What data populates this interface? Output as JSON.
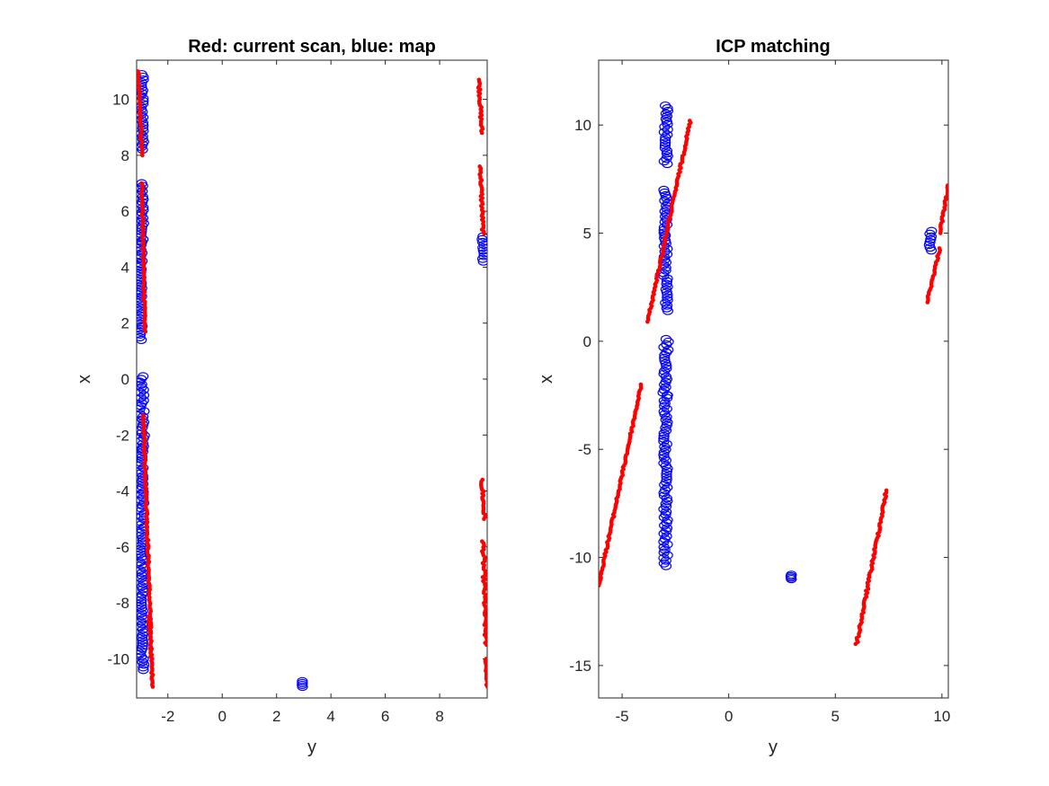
{
  "figure": {
    "background": "#ffffff"
  },
  "chart_data": [
    {
      "type": "scatter",
      "title": "Red: current scan, blue: map",
      "xlabel": "y",
      "ylabel": "x",
      "xlim": [
        -3.15,
        9.75
      ],
      "ylim": [
        -11.4,
        11.4
      ],
      "xticks": [
        -2,
        0,
        2,
        4,
        6,
        8
      ],
      "yticks": [
        -10,
        -8,
        -6,
        -4,
        -2,
        0,
        2,
        4,
        6,
        8,
        10
      ],
      "grid": false,
      "legend": "none",
      "series": [
        {
          "color": "#0000ff",
          "marker": "circle-open",
          "segments": [
            {
              "x": [
                -2.95,
                -2.95
              ],
              "y": [
                8.2,
                10.9
              ],
              "jitter": 0.06
            },
            {
              "x": [
                -2.95,
                -2.95
              ],
              "y": [
                4.9,
                7.0
              ],
              "jitter": 0.06
            },
            {
              "x": [
                -3.0,
                -3.0
              ],
              "y": [
                1.4,
                4.9
              ],
              "jitter": 0.06
            },
            {
              "x": [
                -2.95,
                -2.95
              ],
              "y": [
                -2.5,
                0.1
              ],
              "jitter": 0.09
            },
            {
              "x": [
                -2.95,
                -2.95
              ],
              "y": [
                -10.4,
                -2.5
              ],
              "jitter": 0.07
            },
            {
              "x": [
                2.95,
                2.95
              ],
              "y": [
                -11.0,
                -10.8
              ],
              "jitter": 0.02
            },
            {
              "x": [
                9.6,
                9.6
              ],
              "y": [
                4.2,
                5.1
              ],
              "jitter": 0.04
            }
          ]
        },
        {
          "color": "#ff0000",
          "marker": "point",
          "segments": [
            {
              "x": [
                -3.1,
                -2.95
              ],
              "y": [
                11.0,
                8.0
              ],
              "jitter": 0.03
            },
            {
              "x": [
                -2.95,
                -2.85
              ],
              "y": [
                7.0,
                1.7
              ],
              "jitter": 0.03
            },
            {
              "x": [
                -2.9,
                -2.6
              ],
              "y": [
                -1.3,
                -10.0
              ],
              "jitter": 0.03
            },
            {
              "x": [
                -2.7,
                -2.55
              ],
              "y": [
                -8.5,
                -11.0
              ],
              "jitter": 0.03
            },
            {
              "x": [
                9.45,
                9.55
              ],
              "y": [
                10.7,
                8.8
              ],
              "jitter": 0.04
            },
            {
              "x": [
                9.5,
                9.6
              ],
              "y": [
                7.6,
                5.2
              ],
              "jitter": 0.04
            },
            {
              "x": [
                9.55,
                9.65
              ],
              "y": [
                -3.6,
                -5.0
              ],
              "jitter": 0.05
            },
            {
              "x": [
                9.6,
                9.7
              ],
              "y": [
                -5.8,
                -9.5
              ],
              "jitter": 0.05
            },
            {
              "x": [
                9.7,
                9.75
              ],
              "y": [
                -10.0,
                -11.0
              ],
              "jitter": 0.03
            }
          ]
        }
      ]
    },
    {
      "type": "scatter",
      "title": "ICP matching",
      "xlabel": "y",
      "ylabel": "x",
      "xlim": [
        -6.1,
        10.3
      ],
      "ylim": [
        -16.5,
        13.0
      ],
      "xticks": [
        -5,
        0,
        5,
        10
      ],
      "yticks": [
        -15,
        -10,
        -5,
        0,
        5,
        10
      ],
      "grid": false,
      "legend": "none",
      "series": [
        {
          "color": "#0000ff",
          "marker": "circle-open",
          "segments": [
            {
              "x": [
                -2.95,
                -2.95
              ],
              "y": [
                8.2,
                10.9
              ],
              "jitter": 0.1
            },
            {
              "x": [
                -2.95,
                -2.95
              ],
              "y": [
                4.9,
                7.0
              ],
              "jitter": 0.1
            },
            {
              "x": [
                -2.95,
                -2.95
              ],
              "y": [
                1.4,
                4.9
              ],
              "jitter": 0.1
            },
            {
              "x": [
                -2.95,
                -2.95
              ],
              "y": [
                -2.5,
                0.1
              ],
              "jitter": 0.14
            },
            {
              "x": [
                -2.95,
                -2.95
              ],
              "y": [
                -10.4,
                -2.5
              ],
              "jitter": 0.1
            },
            {
              "x": [
                2.95,
                2.95
              ],
              "y": [
                -11.0,
                -10.8
              ],
              "jitter": 0.03
            },
            {
              "x": [
                9.45,
                9.45
              ],
              "y": [
                4.2,
                5.1
              ],
              "jitter": 0.07
            }
          ]
        },
        {
          "color": "#ff0000",
          "marker": "point",
          "segments": [
            {
              "x": [
                -3.8,
                -1.8
              ],
              "y": [
                0.9,
                10.2
              ],
              "jitter": 0.04
            },
            {
              "x": [
                -6.1,
                -4.1
              ],
              "y": [
                -11.3,
                -2.0
              ],
              "jitter": 0.04
            },
            {
              "x": [
                6.0,
                7.4
              ],
              "y": [
                -14.0,
                -6.9
              ],
              "jitter": 0.05
            },
            {
              "x": [
                9.3,
                9.9
              ],
              "y": [
                1.8,
                4.3
              ],
              "jitter": 0.04
            },
            {
              "x": [
                9.9,
                10.3
              ],
              "y": [
                5.0,
                7.2
              ],
              "jitter": 0.04
            }
          ]
        }
      ]
    }
  ]
}
